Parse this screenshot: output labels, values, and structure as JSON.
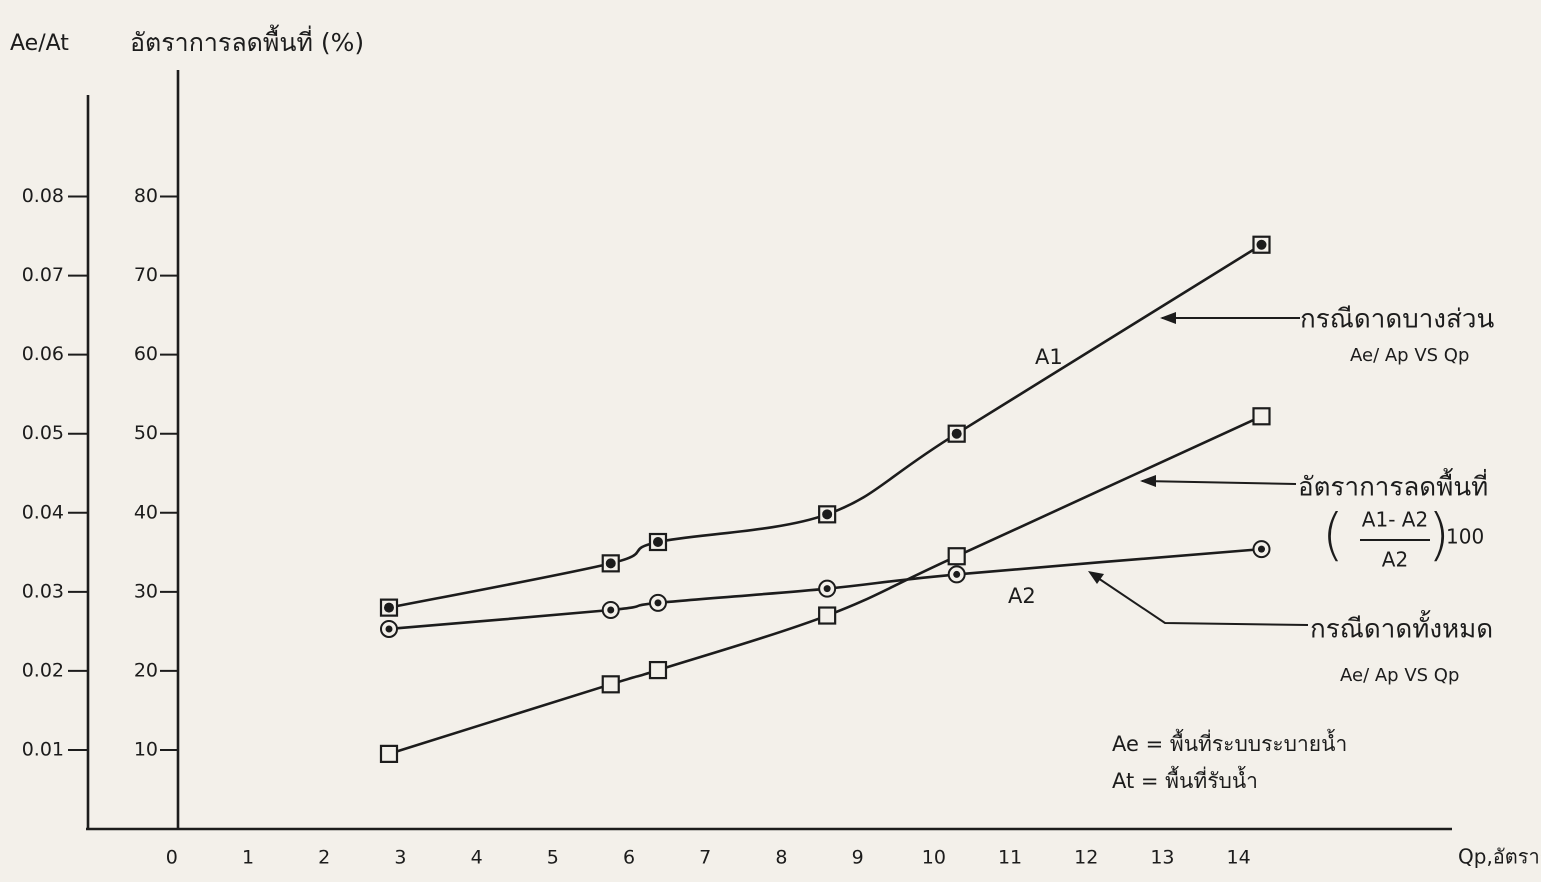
{
  "chart_data": {
    "type": "line",
    "ylabel": "Ae/At",
    "y2label": "อัตราการลดพื้นที่ (%)",
    "xlabel": "Qp,อัตราการไหล (cms)",
    "x": [
      2.85,
      5.76,
      6.38,
      8.6,
      10.3,
      14.3
    ],
    "series": [
      {
        "name": "A1",
        "color": "#1c1c1c",
        "marker": "square-dot",
        "values": [
          0.028,
          0.0336,
          0.0363,
          0.0398,
          0.05,
          0.0739
        ]
      },
      {
        "name": "A2",
        "color": "#1c1c1c",
        "marker": "circle-dot",
        "values": [
          0.0253,
          0.0277,
          0.0286,
          0.0304,
          0.0322,
          0.0354
        ]
      },
      {
        "name": "อัตราการลดพื้นที่",
        "color": "#1c1c1c",
        "marker": "square",
        "axis": "y2",
        "values": [
          9.5,
          18.3,
          20.1,
          27.0,
          34.5,
          52.2
        ]
      }
    ],
    "xlim": [
      -1.1,
      16.8
    ],
    "xticks": [
      0,
      1,
      2,
      3,
      4,
      5,
      6,
      7,
      8,
      9,
      10,
      11,
      12,
      13,
      14
    ],
    "ylim": [
      0,
      0.096
    ],
    "yticks": [
      0.01,
      0.02,
      0.03,
      0.04,
      0.05,
      0.06,
      0.07,
      0.08
    ],
    "y2lim": [
      0,
      96
    ],
    "y2ticks": [
      10,
      20,
      30,
      40,
      50,
      60,
      70,
      80
    ],
    "annotations": {
      "partial_case": "กรณีดาดบางส่วน",
      "partial_case_note": "Ae/ Ap VS Qp",
      "formula_numerator": "A1- A2",
      "formula_denominator": "A2",
      "formula_factor": "100",
      "full_case": "กรณีดาดทั้งหมด",
      "full_case_note": "Ae/ Ap VS Qp",
      "def_ae": "Ae = พื้นที่ระบบระบายน้ำ",
      "def_at": "At = พื้นที่รับน้ำ"
    }
  }
}
